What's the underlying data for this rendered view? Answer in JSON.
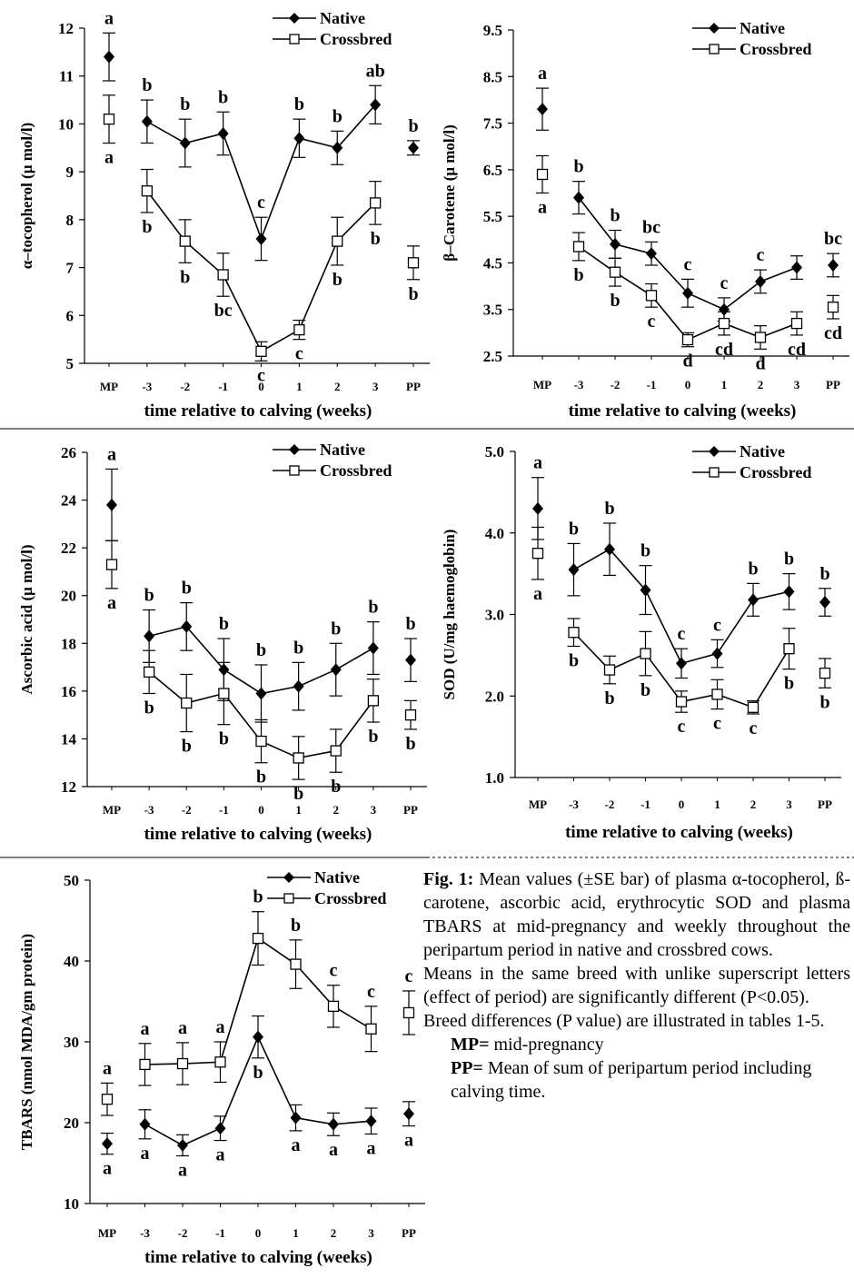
{
  "chart_data": [
    {
      "type": "line",
      "ylabel": "α–tocopherol (μ mol/l)",
      "xlabel": "time relative to calving (weeks)",
      "categories": [
        "MP",
        "-3",
        "-2",
        "-1",
        "0",
        "1",
        "2",
        "3",
        "PP"
      ],
      "ylim": [
        5,
        12
      ],
      "yticks": [
        "5",
        "6",
        "7",
        "8",
        "9",
        "10",
        "11",
        "12"
      ],
      "legend": "top-right",
      "series": [
        {
          "name": "Native",
          "marker": "filled-diamond",
          "values": [
            11.4,
            10.05,
            9.6,
            9.8,
            7.6,
            9.7,
            9.5,
            10.4,
            9.5
          ],
          "errors": [
            0.5,
            0.45,
            0.5,
            0.45,
            0.45,
            0.4,
            0.35,
            0.4,
            0.15
          ],
          "letters": [
            "a",
            "b",
            "b",
            "b",
            "c",
            "b",
            "b",
            "ab",
            "b"
          ]
        },
        {
          "name": "Crossbred",
          "marker": "open-square",
          "values": [
            10.1,
            8.6,
            7.55,
            6.85,
            5.25,
            5.7,
            7.55,
            8.35,
            7.1
          ],
          "errors": [
            0.5,
            0.45,
            0.45,
            0.45,
            0.2,
            0.2,
            0.5,
            0.45,
            0.35
          ],
          "letters": [
            "a",
            "b",
            "b",
            "bc",
            "c",
            "c",
            "b",
            "b",
            "b"
          ]
        }
      ]
    },
    {
      "type": "line",
      "ylabel": "β–Carotene (μ mol/l)",
      "xlabel": "time relative to calving (weeks)",
      "categories": [
        "MP",
        "-3",
        "-2",
        "-1",
        "0",
        "1",
        "2",
        "3",
        "PP"
      ],
      "ylim": [
        2.5,
        9.5
      ],
      "yticks": [
        "2.5",
        "3.5",
        "4.5",
        "5.5",
        "6.5",
        "7.5",
        "8.5",
        "9.5"
      ],
      "legend": "top-right",
      "series": [
        {
          "name": "Native",
          "marker": "filled-diamond",
          "values": [
            7.8,
            5.9,
            4.9,
            4.7,
            3.85,
            3.5,
            4.1,
            4.4,
            4.45
          ],
          "errors": [
            0.45,
            0.35,
            0.3,
            0.25,
            0.3,
            0.25,
            0.25,
            0.25,
            0.25
          ],
          "letters": [
            "a",
            "b",
            "b",
            "bc",
            "c",
            "c",
            "c",
            "",
            "bc"
          ]
        },
        {
          "name": "Crossbred",
          "marker": "open-square",
          "values": [
            6.4,
            4.85,
            4.3,
            3.8,
            2.85,
            3.2,
            2.9,
            3.2,
            3.55
          ],
          "errors": [
            0.4,
            0.3,
            0.3,
            0.25,
            0.15,
            0.25,
            0.25,
            0.25,
            0.25
          ],
          "letters": [
            "a",
            "b",
            "b",
            "c",
            "d",
            "cd",
            "d",
            "cd",
            "cd"
          ]
        }
      ]
    },
    {
      "type": "line",
      "ylabel": "Ascorbic acid (μ mol/l)",
      "xlabel": "time relative to calving (weeks)",
      "categories": [
        "MP",
        "-3",
        "-2",
        "-1",
        "0",
        "1",
        "2",
        "3",
        "PP"
      ],
      "ylim": [
        12,
        26
      ],
      "yticks": [
        "12",
        "14",
        "16",
        "18",
        "20",
        "22",
        "24",
        "26"
      ],
      "legend": "top-right",
      "series": [
        {
          "name": "Native",
          "marker": "filled-diamond",
          "values": [
            23.8,
            18.3,
            18.7,
            16.9,
            15.9,
            16.2,
            16.9,
            17.8,
            17.3
          ],
          "errors": [
            1.5,
            1.1,
            1.0,
            1.3,
            1.2,
            1.0,
            1.1,
            1.1,
            0.9
          ],
          "letters": [
            "a",
            "b",
            "b",
            "b",
            "b",
            "b",
            "b",
            "b",
            "b"
          ]
        },
        {
          "name": "Crossbred",
          "marker": "open-square",
          "values": [
            21.3,
            16.8,
            15.5,
            15.9,
            13.9,
            13.2,
            13.5,
            15.6,
            15.0
          ],
          "errors": [
            1.0,
            0.9,
            1.2,
            1.3,
            0.9,
            0.9,
            0.9,
            0.9,
            0.6
          ],
          "letters": [
            "a",
            "b",
            "b",
            "b",
            "b",
            "b",
            "b",
            "b",
            "b"
          ]
        }
      ]
    },
    {
      "type": "line",
      "ylabel": "SOD (U/mg haemoglobin)",
      "xlabel": "time relative to calving (weeks)",
      "categories": [
        "MP",
        "-3",
        "-2",
        "-1",
        "0",
        "1",
        "2",
        "3",
        "PP"
      ],
      "ylim": [
        1.0,
        5.0
      ],
      "yticks": [
        "1.0",
        "2.0",
        "3.0",
        "4.0",
        "5.0"
      ],
      "legend": "top-right",
      "series": [
        {
          "name": "Native",
          "marker": "filled-diamond",
          "values": [
            4.3,
            3.55,
            3.8,
            3.3,
            2.4,
            2.52,
            3.18,
            3.28,
            3.15
          ],
          "errors": [
            0.38,
            0.32,
            0.32,
            0.3,
            0.18,
            0.17,
            0.2,
            0.22,
            0.17
          ],
          "letters": [
            "a",
            "b",
            "b",
            "b",
            "c",
            "c",
            "b",
            "b",
            "b"
          ]
        },
        {
          "name": "Crossbred",
          "marker": "open-square",
          "values": [
            3.75,
            2.78,
            2.32,
            2.52,
            1.93,
            2.02,
            1.86,
            2.58,
            2.28
          ],
          "errors": [
            0.32,
            0.17,
            0.17,
            0.27,
            0.13,
            0.18,
            0.08,
            0.25,
            0.18
          ],
          "letters": [
            "a",
            "b",
            "b",
            "b",
            "c",
            "c",
            "c",
            "b",
            "b"
          ]
        }
      ]
    },
    {
      "type": "line",
      "ylabel": "TBARS (nmol MDA/gm protein)",
      "xlabel": "time relative to calving (weeks)",
      "categories": [
        "MP",
        "-3",
        "-2",
        "-1",
        "0",
        "1",
        "2",
        "3",
        "PP"
      ],
      "ylim": [
        10,
        50
      ],
      "yticks": [
        "10",
        "20",
        "30",
        "40",
        "50"
      ],
      "legend": "top-right",
      "series": [
        {
          "name": "Native",
          "marker": "filled-diamond",
          "values": [
            17.4,
            19.8,
            17.2,
            19.3,
            30.6,
            20.6,
            19.8,
            20.2,
            21.1
          ],
          "errors": [
            1.3,
            1.8,
            1.3,
            1.5,
            2.6,
            1.6,
            1.4,
            1.6,
            1.5
          ],
          "letters": [
            "a",
            "a",
            "a",
            "a",
            "b",
            "a",
            "a",
            "a",
            "a"
          ]
        },
        {
          "name": "Crossbred",
          "marker": "open-square",
          "values": [
            22.9,
            27.2,
            27.3,
            27.5,
            42.8,
            39.6,
            34.4,
            31.6,
            33.6
          ],
          "errors": [
            2.0,
            2.6,
            2.6,
            2.5,
            3.3,
            3.0,
            2.6,
            2.8,
            2.7
          ],
          "letters": [
            "a",
            "a",
            "a",
            "a",
            "b",
            "b",
            "c",
            "c",
            "c"
          ]
        }
      ]
    }
  ],
  "caption": {
    "fig_label": "Fig. 1:",
    "text": "Mean values (±SE bar) of plasma α-tocopherol, ß-carotene, ascorbic acid, erythrocytic SOD and plasma TBARS at mid-pregnancy and weekly throughout the peripartum period in native and crossbred cows.",
    "note1": "Means in the same breed with unlike superscript letters (effect of period) are significantly different (P<0.05).",
    "note2": "Breed differences (P value) are illustrated in tables 1-5.",
    "mp_key": "MP=",
    "mp_text": " mid-pregnancy",
    "pp_key": "PP=",
    "pp_text": " Mean of sum of peripartum period including calving time."
  }
}
